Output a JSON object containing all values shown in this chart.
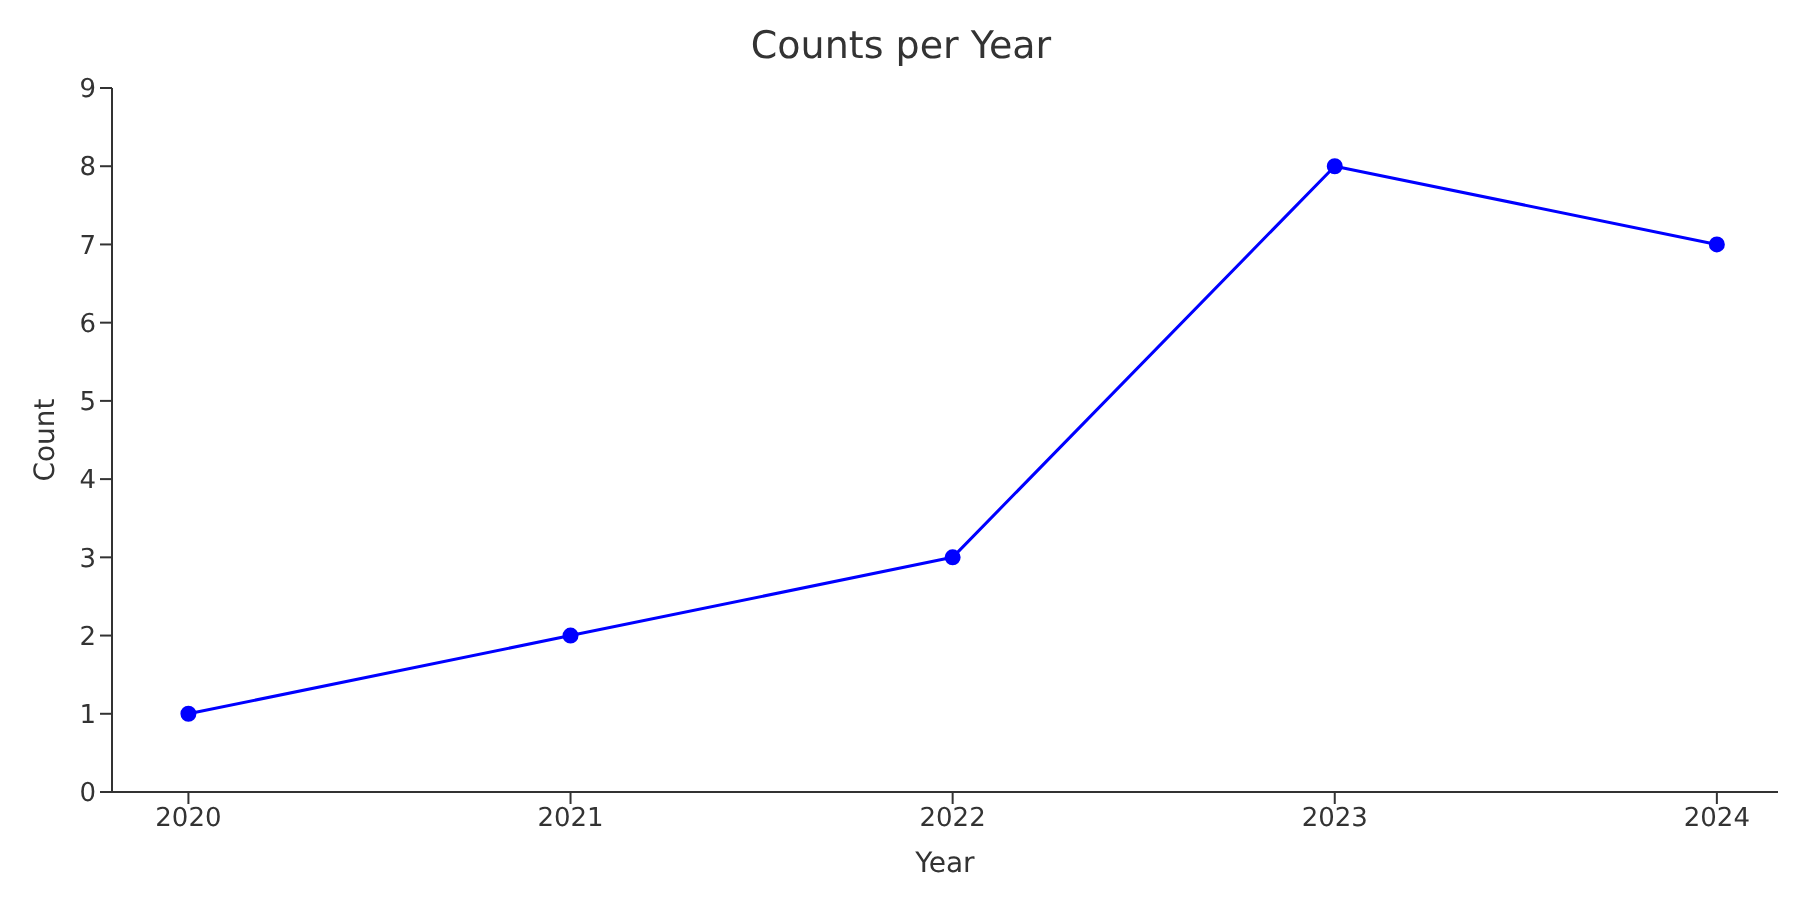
{
  "chart_data": {
    "type": "line",
    "title": "Counts per Year",
    "xlabel": "Year",
    "ylabel": "Count",
    "x": [
      2020,
      2021,
      2022,
      2023,
      2024
    ],
    "series": [
      {
        "color": "#0000ff",
        "values": [
          1,
          2,
          3,
          8,
          7
        ]
      }
    ],
    "xlim": [
      2019.8,
      2024.16
    ],
    "xticks": [
      2020,
      2021,
      2022,
      2023,
      2024
    ],
    "ylim": [
      0,
      9
    ],
    "yticks": [
      0,
      1,
      2,
      3,
      4,
      5,
      6,
      7,
      8,
      9
    ],
    "grid": false,
    "legend": false,
    "marker": "circle",
    "line_style": "solid"
  }
}
